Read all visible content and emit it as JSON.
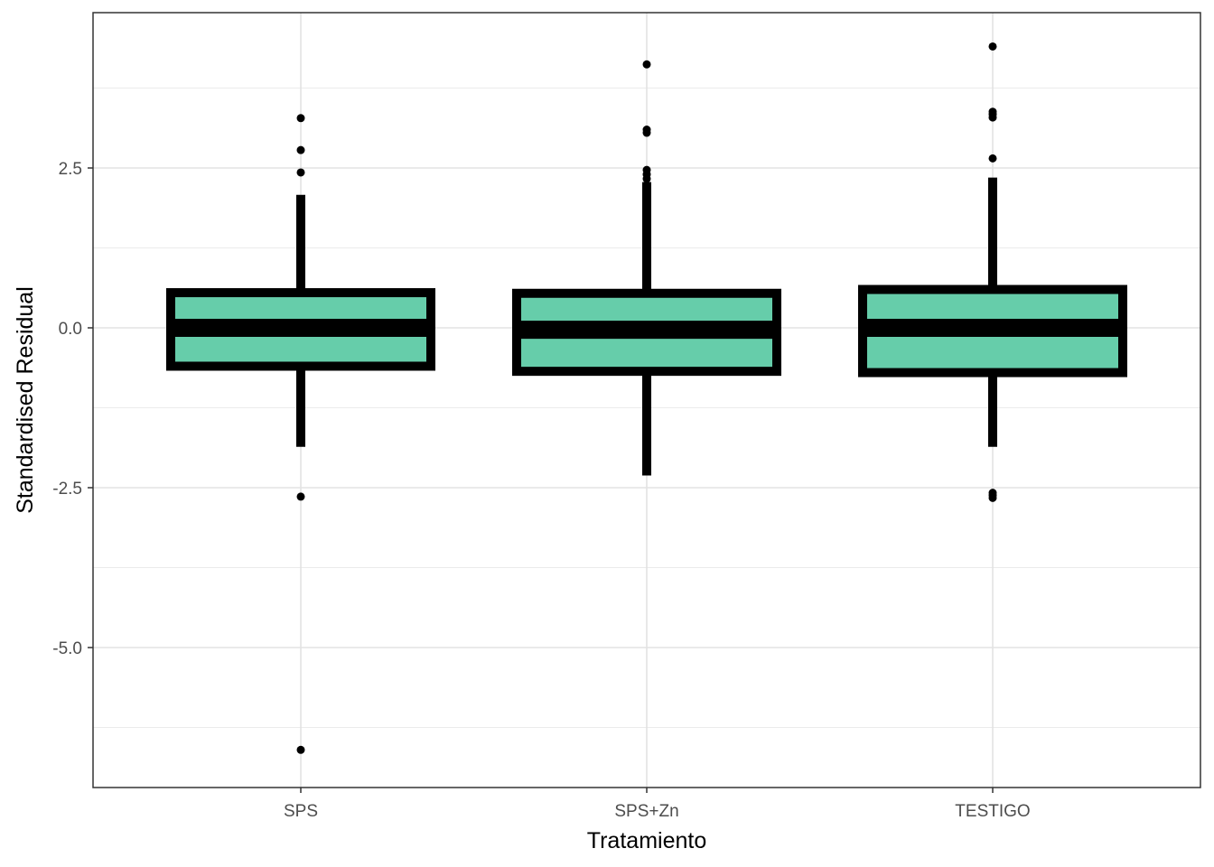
{
  "chart_data": {
    "type": "boxplot",
    "xlabel": "Tratamiento",
    "ylabel": "Standardised Residual",
    "categories": [
      "SPS",
      "SPS+Zn",
      "TESTIGO"
    ],
    "y_ticks": [
      -5.0,
      -2.5,
      0.0,
      2.5
    ],
    "y_tick_labels": [
      "-5.0",
      "-2.5",
      "0.0",
      "2.5"
    ],
    "ylim": [
      -7.1,
      5.0
    ],
    "grid": true,
    "fill_color": "#66cdaa",
    "line_color": "#000000",
    "boxes": [
      {
        "category": "SPS",
        "lower_whisker": -1.86,
        "q1": -0.6,
        "median": 0.0,
        "q3": 0.55,
        "upper_whisker": 2.08,
        "outliers": [
          3.28,
          2.78,
          2.43,
          -2.64,
          -6.6
        ]
      },
      {
        "category": "SPS+Zn",
        "lower_whisker": -2.31,
        "q1": -0.68,
        "median": -0.03,
        "q3": 0.54,
        "upper_whisker": 2.28,
        "outliers": [
          4.12,
          3.1,
          3.05,
          2.47,
          2.4,
          2.33
        ]
      },
      {
        "category": "TESTIGO",
        "lower_whisker": -1.86,
        "q1": -0.7,
        "median": 0.0,
        "q3": 0.6,
        "upper_whisker": 2.35,
        "outliers": [
          4.4,
          3.38,
          3.34,
          3.29,
          2.65,
          -2.58,
          -2.62,
          -2.66
        ]
      }
    ]
  }
}
